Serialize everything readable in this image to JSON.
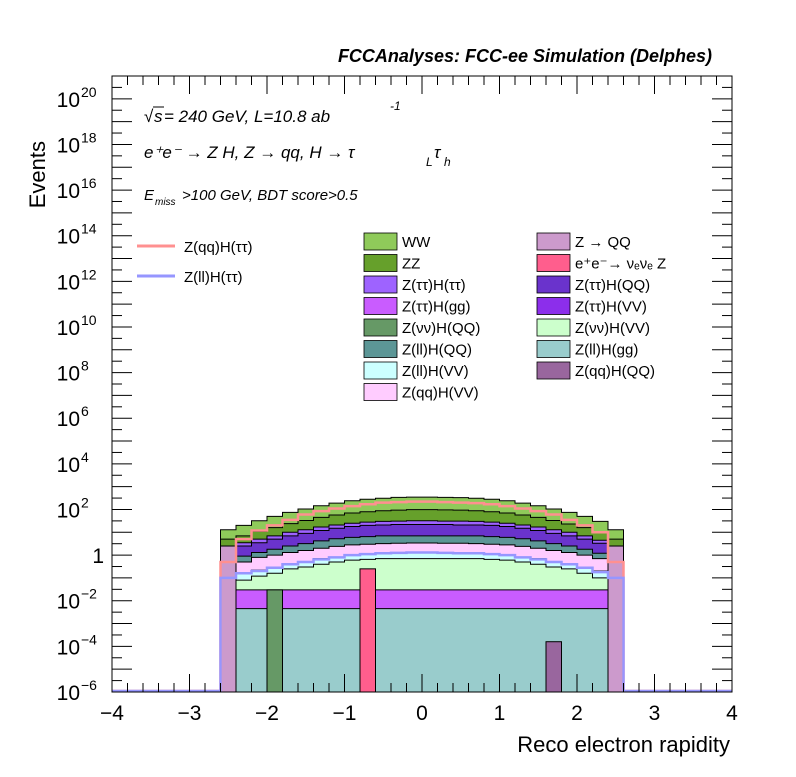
{
  "header": {
    "title": "FCCAnalyses: FCC-ee Simulation (Delphes)"
  },
  "annotations": {
    "energy_prefix": "s",
    "energy_text": " = 240 GeV, L=10.8 ab",
    "lumi_exp": "-1",
    "process_main": "e⁺e⁻ → Z H, Z → qq, H → τ",
    "tau1_sub": "L",
    "tau2": "τ",
    "tau2_sub": "h",
    "cut_e": "E",
    "cut_sub": "miss",
    "cut_rest": ">100 GeV, BDT score>0.5"
  },
  "axes": {
    "ylabel": "Events",
    "xlabel": "Reco electron rapidity"
  },
  "legend_signals": [
    {
      "label": "Z(qq)H(ττ)",
      "color": "#ff9090"
    },
    {
      "label": "Z(ll)H(ττ)",
      "color": "#9696ff"
    }
  ],
  "legend_backgrounds": [
    {
      "label": "WW",
      "color": "#8fca5a"
    },
    {
      "label": "Z → QQ",
      "color": "#cc9acc"
    },
    {
      "label": "ZZ",
      "color": "#66a02b"
    },
    {
      "label": "e⁺e⁻→ νₑνₑ Z",
      "color": "#ff5e8d"
    },
    {
      "label": "Z(ττ)H(ττ)",
      "color": "#9e63ff"
    },
    {
      "label": "Z(ττ)H(QQ)",
      "color": "#6a33cc"
    },
    {
      "label": "Z(ττ)H(gg)",
      "color": "#c95cff"
    },
    {
      "label": "Z(ττ)H(VV)",
      "color": "#8c2eeb"
    },
    {
      "label": "Z(νν)H(QQ)",
      "color": "#669966"
    },
    {
      "label": "Z(νν)H(VV)",
      "color": "#ccffcc"
    },
    {
      "label": "Z(ll)H(QQ)",
      "color": "#5c9696"
    },
    {
      "label": "Z(ll)H(gg)",
      "color": "#99cccc"
    },
    {
      "label": "Z(ll)H(VV)",
      "color": "#ccffff"
    },
    {
      "label": "Z(qq)H(QQ)",
      "color": "#99669e"
    },
    {
      "label": "Z(qq)H(VV)",
      "color": "#ffccff"
    }
  ],
  "chart_data": {
    "type": "area",
    "stacked": true,
    "y_scale": "log",
    "xlim": [
      -4,
      4
    ],
    "ylim": [
      1e-06,
      1e+21
    ],
    "x_ticks": [
      "−4",
      "−3",
      "−2",
      "−1",
      "0",
      "1",
      "2",
      "3",
      "4"
    ],
    "y_ticks": [
      {
        "base": "10",
        "exp": "−6"
      },
      {
        "base": "10",
        "exp": "−4"
      },
      {
        "base": "10",
        "exp": "−2"
      },
      {
        "base": "1",
        "exp": ""
      },
      {
        "base": "10",
        "exp": "2"
      },
      {
        "base": "10",
        "exp": "4"
      },
      {
        "base": "10",
        "exp": "6"
      },
      {
        "base": "10",
        "exp": "8"
      },
      {
        "base": "10",
        "exp": "10"
      },
      {
        "base": "10",
        "exp": "12"
      },
      {
        "base": "10",
        "exp": "14"
      },
      {
        "base": "10",
        "exp": "16"
      },
      {
        "base": "10",
        "exp": "18"
      },
      {
        "base": "10",
        "exp": "20"
      }
    ],
    "bin_edges": [
      -2.6,
      -2.4,
      -2.2,
      -2.0,
      -1.8,
      -1.6,
      -1.4,
      -1.2,
      -1.0,
      -0.8,
      -0.6,
      -0.4,
      -0.2,
      0.0,
      0.2,
      0.4,
      0.6,
      0.8,
      1.0,
      1.2,
      1.4,
      1.6,
      1.8,
      2.0,
      2.2,
      2.4,
      2.6
    ],
    "stack_boundaries": [
      {
        "name": "Z(ll)H(gg)",
        "color": "#99cccc",
        "values": [
          0.0045,
          0.0045,
          0.0045,
          0.0045,
          0.0045,
          0.0045,
          0.0045,
          0.0045,
          0.0045,
          0.0045,
          0.0045,
          0.0045,
          0.0045,
          0.0045,
          0.0045,
          0.0045,
          0.0045,
          0.0045,
          0.0045,
          0.0045,
          0.0045,
          0.0045,
          0.0045,
          0.0045,
          0.0045,
          0.0045
        ]
      },
      {
        "name": "Z(ττ)H(gg)",
        "color": "#c95cff",
        "values": [
          0.03,
          0.03,
          0.03,
          0.03,
          0.03,
          0.03,
          0.03,
          0.03,
          0.03,
          0.03,
          0.03,
          0.03,
          0.03,
          0.03,
          0.03,
          0.03,
          0.03,
          0.03,
          0.03,
          0.03,
          0.03,
          0.03,
          0.03,
          0.03,
          0.03,
          0.03
        ]
      },
      {
        "name": "Z(νν)H(VV)",
        "color": "#ccffcc",
        "values": [
          0.06,
          0.08,
          0.12,
          0.16,
          0.25,
          0.3,
          0.4,
          0.5,
          0.6,
          0.65,
          0.7,
          0.7,
          0.7,
          0.7,
          0.7,
          0.7,
          0.7,
          0.65,
          0.6,
          0.5,
          0.4,
          0.3,
          0.25,
          0.16,
          0.1,
          0.06
        ]
      },
      {
        "name": "Z(ll)H(VV)",
        "color": "#ccffff",
        "values": [
          0.12,
          0.16,
          0.22,
          0.3,
          0.4,
          0.5,
          0.7,
          0.8,
          1.0,
          1.1,
          1.2,
          1.3,
          1.3,
          1.3,
          1.3,
          1.2,
          1.2,
          1.1,
          1.0,
          0.8,
          0.7,
          0.5,
          0.4,
          0.3,
          0.2,
          0.12
        ]
      },
      {
        "name": "Z(qq)H(VV)",
        "color": "#ffccff",
        "values": [
          0.4,
          0.5,
          0.8,
          1.0,
          1.3,
          1.6,
          2.0,
          2.4,
          2.8,
          3.0,
          3.2,
          3.3,
          3.4,
          3.4,
          3.3,
          3.3,
          3.2,
          3.0,
          2.8,
          2.4,
          2.0,
          1.6,
          1.3,
          1.0,
          0.7,
          0.4
        ]
      },
      {
        "name": "Z(ll)H(QQ)",
        "color": "#5c9696",
        "values": [
          0.7,
          0.9,
          1.3,
          1.8,
          2.5,
          3.2,
          4.2,
          5.2,
          6.0,
          6.5,
          7.0,
          7.0,
          7.0,
          7.0,
          7.0,
          7.0,
          7.0,
          6.5,
          6.0,
          5.2,
          4.2,
          3.2,
          2.5,
          1.8,
          1.2,
          0.7
        ]
      },
      {
        "name": "Z(ττ)H(QQ)",
        "color": "#6a33cc",
        "values": [
          1.8,
          2.5,
          3.5,
          5.0,
          7.0,
          9.0,
          12.0,
          15.0,
          18.0,
          20.0,
          21.0,
          22.0,
          22.0,
          22.0,
          22.0,
          21.0,
          21.0,
          20.0,
          18.0,
          15.0,
          12.0,
          9.0,
          7.0,
          5.0,
          3.3,
          1.8
        ]
      },
      {
        "name": "Z(ττ)H(ττ)",
        "color": "#9e63ff",
        "values": [
          2.5,
          3.5,
          5.0,
          7.0,
          10.0,
          13.0,
          17.0,
          21.0,
          25.0,
          28.0,
          30.0,
          31.0,
          32.0,
          32.0,
          31.0,
          31.0,
          30.0,
          28.0,
          25.0,
          21.0,
          17.0,
          13.0,
          10.0,
          7.0,
          4.5,
          2.5
        ]
      },
      {
        "name": "ZZ",
        "color": "#66a02b",
        "values": [
          5.0,
          7.0,
          11.0,
          16.0,
          24.0,
          33.0,
          45.0,
          57.0,
          70.0,
          80.0,
          88.0,
          94.0,
          98.0,
          98.0,
          96.0,
          94.0,
          88.0,
          80.0,
          70.0,
          57.0,
          45.0,
          33.0,
          23.0,
          16.0,
          10.0,
          5.0
        ]
      },
      {
        "name": "WW",
        "color": "#8fca5a",
        "values": [
          13.0,
          20.0,
          32.0,
          50.0,
          75.0,
          105.0,
          145.0,
          190.0,
          240.0,
          280.0,
          310.0,
          340.0,
          350.0,
          350.0,
          340.0,
          330.0,
          310.0,
          280.0,
          240.0,
          190.0,
          145.0,
          105.0,
          75.0,
          50.0,
          30.0,
          13.0
        ]
      }
    ],
    "outlined_series": [
      {
        "name": "Z(qq)H(ττ)",
        "color": "#ff9090",
        "values": [
          0.5,
          5.0,
          12.0,
          20.0,
          35.0,
          60.0,
          85.0,
          110.0,
          140.0,
          170.0,
          200.0,
          210.0,
          220.0,
          220.0,
          210.0,
          200.0,
          190.0,
          170.0,
          140.0,
          110.0,
          85.0,
          60.0,
          35.0,
          20.0,
          10.0,
          0.5
        ]
      },
      {
        "name": "Z(ll)H(ττ)",
        "color": "#9696ff",
        "values": [
          0.1,
          0.16,
          0.2,
          0.28,
          0.4,
          0.5,
          0.65,
          0.8,
          1.0,
          1.1,
          1.2,
          1.25,
          1.3,
          1.3,
          1.25,
          1.2,
          1.2,
          1.1,
          1.0,
          0.8,
          0.65,
          0.5,
          0.4,
          0.28,
          0.18,
          0.1
        ]
      }
    ],
    "spikes": [
      {
        "name": "Z(νν)H(QQ)",
        "color": "#669966",
        "x": [
          -2.0,
          -1.8
        ],
        "value": 0.03
      },
      {
        "name": "e⁺e⁻→ νₑνₑ Z",
        "color": "#ff5e8d",
        "x": [
          -0.8,
          -0.6
        ],
        "value": 0.25
      },
      {
        "name": "Z(qq)H(QQ)",
        "color": "#99669e",
        "x": [
          1.6,
          1.8
        ],
        "value": 0.00016
      }
    ],
    "edge_bins": [
      {
        "name": "Z → QQ",
        "color": "#cc9acc",
        "x": [
          -2.6,
          -2.4
        ],
        "value": 2.5
      },
      {
        "name": "Z → QQ",
        "color": "#cc9acc",
        "x": [
          2.4,
          2.6
        ],
        "value": 2.5
      }
    ]
  }
}
